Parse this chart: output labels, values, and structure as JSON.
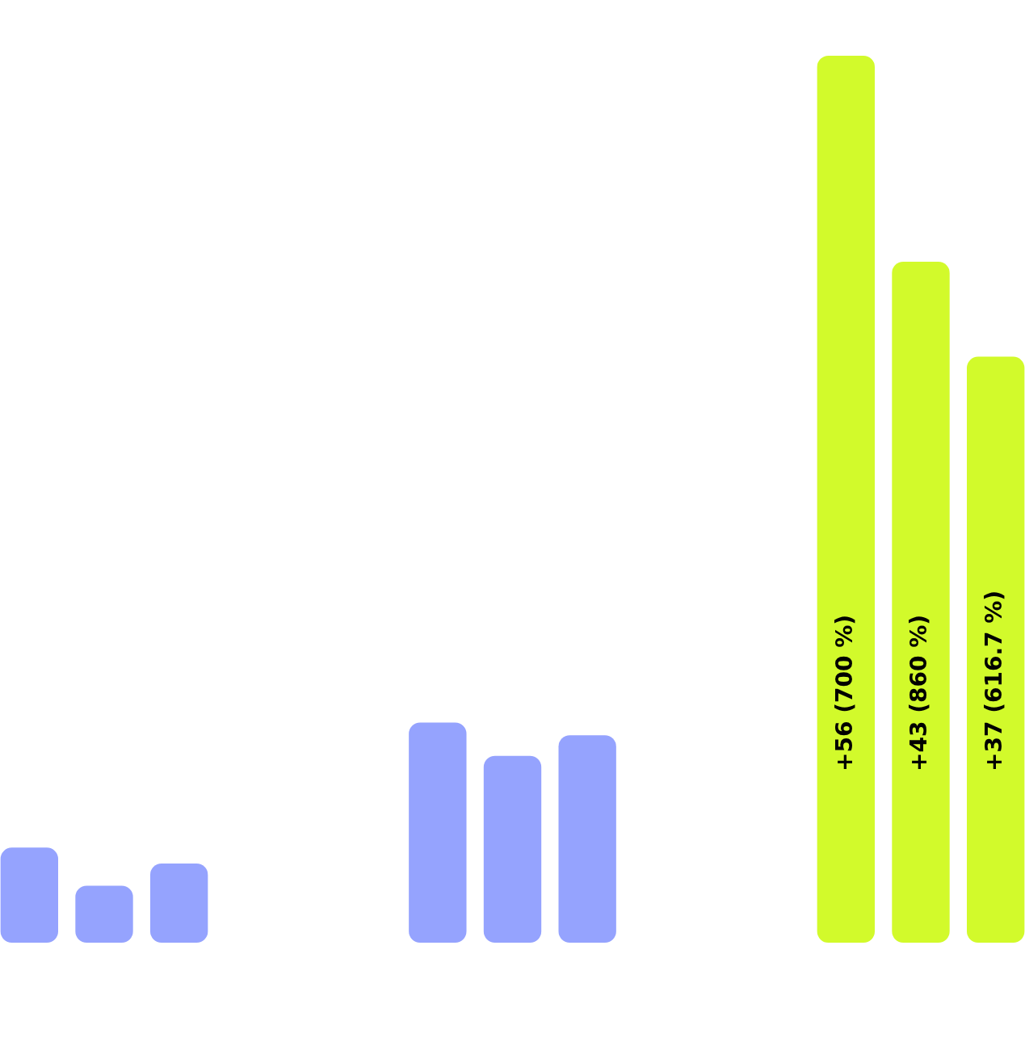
{
  "chart_data": {
    "type": "bar",
    "categories": [
      null,
      null,
      null
    ],
    "series": [
      {
        "colors": [
          "#95a3fe",
          "#95a3fe",
          "#d2fa2b"
        ],
        "values": [
          6,
          13.9,
          56
        ],
        "value_labels": [
          null,
          null,
          "+56 (700 %)"
        ]
      },
      {
        "colors": [
          "#95a3fe",
          "#95a3fe",
          "#d2fa2b"
        ],
        "values": [
          3.6,
          11.8,
          43
        ],
        "value_labels": [
          null,
          null,
          "+43 (860 %)"
        ]
      },
      {
        "colors": [
          "#95a3fe",
          "#95a3fe",
          "#d2fa2b"
        ],
        "values": [
          5,
          13.1,
          37
        ],
        "value_labels": [
          null,
          null,
          "+37 (616.7 %)"
        ]
      }
    ]
  }
}
